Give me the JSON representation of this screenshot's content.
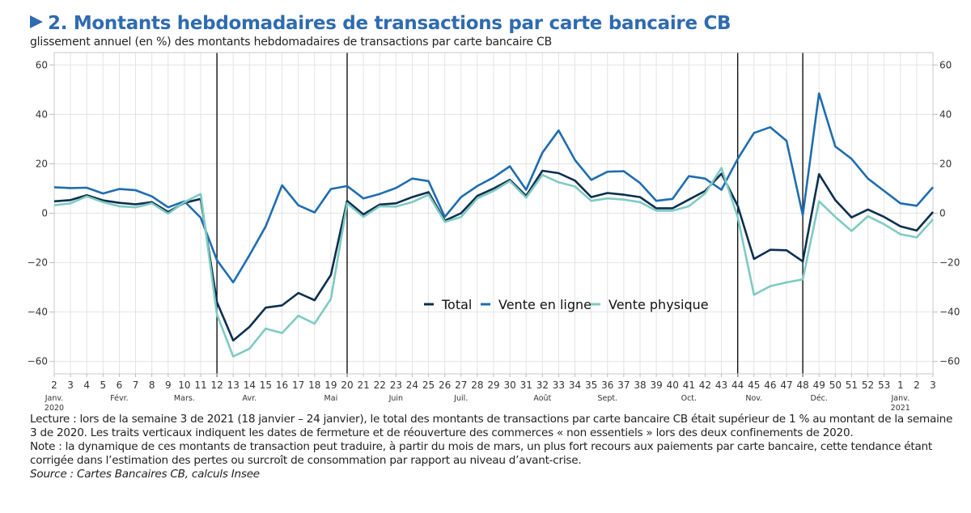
{
  "header": {
    "title": "2. Montants hebdomadaires de transactions par carte bancaire CB",
    "subtitle": "glissement annuel (en %) des montants hebdomadaires de transactions par carte bancaire CB"
  },
  "notes": {
    "lecture": "Lecture : lors de la semaine 3 de 2021 (18 janvier – 24 janvier), le total des montants de transactions par carte bancaire CB était supérieur de 1 % au montant de la semaine 3 de 2020. Les traits verticaux indiquent les dates de fermeture et de réouverture des commerces « non essentiels » lors des deux confinements de 2020.",
    "note": "Note : la dynamique de ces montants de transaction peut traduire, à partir du mois de mars, un plus fort recours aux paiements par carte bancaire, cette tendance étant corrigée dans l’estimation des pertes ou surcroît de consommation par rapport au niveau d’avant-crise.",
    "source": "Source : Cartes Bancaires CB, calculs Insee"
  },
  "chart_data": {
    "type": "line",
    "title": "2. Montants hebdomadaires de transactions par carte bancaire CB",
    "subtitle": "glissement annuel (en %) des montants hebdomadaires de transactions par carte bancaire CB",
    "xlabel": "",
    "ylabel": "glissement annuel (en %)",
    "ylim": [
      -65,
      65
    ],
    "yticks": [
      -60,
      -40,
      -20,
      0,
      20,
      40,
      60
    ],
    "ytick_labels": [
      "−60",
      "−40",
      "−20",
      "0",
      "20",
      "40",
      "60"
    ],
    "grid": true,
    "legend_position": "center-bottom (inside plot)",
    "categories": [
      "2",
      "3",
      "4",
      "5",
      "6",
      "7",
      "8",
      "9",
      "10",
      "11",
      "12",
      "13",
      "14",
      "15",
      "16",
      "17",
      "18",
      "19",
      "20",
      "21",
      "22",
      "23",
      "24",
      "25",
      "26",
      "27",
      "28",
      "29",
      "30",
      "31",
      "32",
      "33",
      "34",
      "35",
      "36",
      "37",
      "38",
      "39",
      "40",
      "41",
      "42",
      "43",
      "44",
      "45",
      "46",
      "47",
      "48",
      "49",
      "50",
      "51",
      "52",
      "53",
      "1",
      "2",
      "3"
    ],
    "month_labels": [
      {
        "at": "2",
        "index": 0,
        "label": "Janv.",
        "year": "2020"
      },
      {
        "at": "6",
        "index": 4,
        "label": "Févr."
      },
      {
        "at": "10",
        "index": 8,
        "label": "Mars."
      },
      {
        "at": "14",
        "index": 12,
        "label": "Avr."
      },
      {
        "at": "19",
        "index": 17,
        "label": "Mai"
      },
      {
        "at": "23",
        "index": 21,
        "label": "Juin"
      },
      {
        "at": "27",
        "index": 25,
        "label": "Juil."
      },
      {
        "at": "32",
        "index": 30,
        "label": "Août"
      },
      {
        "at": "36",
        "index": 34,
        "label": "Sept."
      },
      {
        "at": "41",
        "index": 39,
        "label": "Oct."
      },
      {
        "at": "45",
        "index": 43,
        "label": "Nov."
      },
      {
        "at": "49",
        "index": 47,
        "label": "Déc."
      },
      {
        "at": "1",
        "index": 52,
        "label": "Janv.",
        "year": "2021"
      }
    ],
    "vertical_markers": [
      {
        "week": "12",
        "index": 10,
        "meaning": "fermeture commerces non essentiels (1er confinement)"
      },
      {
        "week": "20",
        "index": 18,
        "meaning": "réouverture (1er confinement)"
      },
      {
        "week": "44",
        "index": 42,
        "meaning": "fermeture commerces non essentiels (2e confinement)"
      },
      {
        "week": "48",
        "index": 46,
        "meaning": "réouverture (2e confinement)"
      }
    ],
    "series": [
      {
        "name": "Total",
        "color": "#0d2f4f",
        "values": [
          4.8,
          5.3,
          7.3,
          5.2,
          4.2,
          3.6,
          4.5,
          0.5,
          4.2,
          5.8,
          -36,
          -51.5,
          -46,
          -38.2,
          -37.3,
          -32.3,
          -35.2,
          -25,
          5,
          -0.5,
          3.5,
          4,
          6.5,
          8.5,
          -3,
          0,
          7,
          10,
          13.5,
          7,
          17.2,
          16.2,
          13.2,
          6.5,
          8.2,
          7.5,
          6.5,
          2,
          2,
          5.5,
          9,
          16,
          3,
          -18.5,
          -14.8,
          -15,
          -19.5,
          15.8,
          5.3,
          -1.7,
          1.5,
          -1.5,
          -5.3,
          -7,
          0.5
        ]
      },
      {
        "name": "Vente en ligne",
        "color": "#1f6db0",
        "values": [
          10.5,
          10.2,
          10.3,
          8,
          9.8,
          9.3,
          6.8,
          2.4,
          4.8,
          -1.8,
          -19,
          -28,
          -17,
          -5.3,
          11.3,
          3.2,
          0.3,
          9.8,
          11,
          6,
          7.8,
          10.2,
          14,
          13,
          -1.5,
          6.5,
          11,
          14.5,
          19,
          9.5,
          24.5,
          33.5,
          21.5,
          13.5,
          16.8,
          17,
          12.2,
          5,
          5.8,
          15,
          14,
          9.5,
          22,
          32.5,
          34.8,
          29.3,
          -0.8,
          48.5,
          27,
          22,
          14,
          9,
          4,
          3,
          10.5
        ]
      },
      {
        "name": "Vente physique",
        "color": "#7ecbc2",
        "values": [
          3.2,
          4,
          6.8,
          4.5,
          2.8,
          2.4,
          4,
          -0.2,
          4.5,
          7.8,
          -41,
          -58,
          -54.8,
          -46.7,
          -48.5,
          -41.5,
          -44.7,
          -34.7,
          4,
          -1.5,
          2.8,
          2.7,
          4.5,
          7.5,
          -3.5,
          -1.5,
          6,
          9,
          13,
          6.3,
          15.5,
          12.5,
          10.8,
          5,
          6,
          5.5,
          4.5,
          1,
          1,
          2.8,
          8,
          18.3,
          -1.5,
          -33,
          -29.5,
          -28,
          -26.8,
          4.8,
          -1.5,
          -7.2,
          -1.2,
          -4.5,
          -8.5,
          -9.8,
          -2.5
        ]
      }
    ]
  }
}
